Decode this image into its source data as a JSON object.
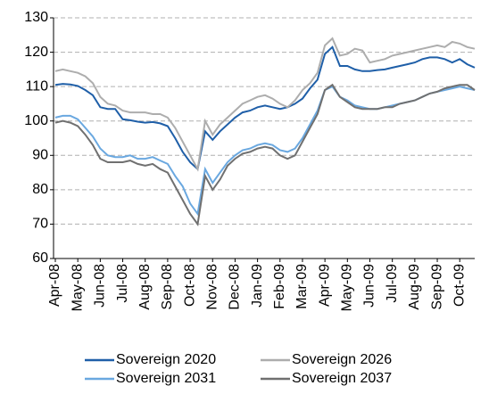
{
  "chart_data": {
    "type": "line",
    "categories": [
      "Apr-08",
      null,
      null,
      "May-08",
      null,
      null,
      "Jun-08",
      null,
      null,
      "Jul-08",
      null,
      null,
      "Aug-08",
      null,
      null,
      "Sep-08",
      null,
      null,
      "Oct-08",
      null,
      null,
      "Nov-08",
      null,
      null,
      "Dec-08",
      null,
      null,
      "Jan-09",
      null,
      null,
      "Feb-09",
      null,
      null,
      "Mar-09",
      null,
      null,
      "Apr-09",
      null,
      null,
      "May-09",
      null,
      null,
      "Jun-09",
      null,
      null,
      "Jul-09",
      null,
      null,
      "Aug-09",
      null,
      null,
      "Sep-09",
      null,
      null,
      "Oct-09",
      null,
      null
    ],
    "series": [
      {
        "name": "Sovereign 2020",
        "color": "#1f5fa8",
        "values": [
          110.5,
          110.8,
          110.6,
          110.2,
          109,
          107.5,
          104,
          103.5,
          103.5,
          100.5,
          100.2,
          99.8,
          99.5,
          99.7,
          99.3,
          98.5,
          95,
          91,
          88,
          86,
          97,
          94.5,
          97,
          99,
          101,
          102.5,
          103,
          104,
          104.5,
          104,
          103.5,
          104,
          105,
          106.5,
          109.5,
          112,
          119.5,
          121.5,
          116,
          116,
          115,
          114.5,
          114.5,
          114.8,
          115,
          115.5,
          116,
          116.5,
          117,
          118,
          118.5,
          118.5,
          118,
          117,
          118,
          116.5,
          115.5
        ]
      },
      {
        "name": "Sovereign 2026",
        "color": "#adadad",
        "values": [
          114.5,
          115,
          114.5,
          114,
          113,
          111,
          107,
          105,
          104.5,
          103,
          102.5,
          102.5,
          102.5,
          102,
          102,
          101,
          98,
          94,
          90,
          86,
          100,
          96,
          99,
          101,
          103,
          105,
          106,
          107,
          107.5,
          106.5,
          105,
          104,
          106,
          109,
          111,
          114,
          122,
          124,
          119,
          119.5,
          121,
          120.5,
          117,
          117.5,
          118,
          119,
          119.5,
          120,
          120.5,
          121,
          121.5,
          122,
          121.5,
          123,
          122.5,
          121.5,
          121
        ]
      },
      {
        "name": "Sovereign 2031",
        "color": "#6aa8e0",
        "values": [
          101,
          101.5,
          101.5,
          100.5,
          98,
          95.5,
          92,
          90,
          89.5,
          89.5,
          90,
          89,
          89,
          89.5,
          88.5,
          87.5,
          84,
          81,
          76,
          73,
          86,
          82,
          85,
          88,
          90,
          91.5,
          92,
          93,
          93.5,
          93,
          91.5,
          91,
          92,
          95,
          99,
          103,
          109,
          110,
          107,
          106,
          104.5,
          104,
          103.5,
          103.5,
          104,
          104.5,
          105,
          105.5,
          106,
          107,
          108,
          108.5,
          109,
          109.5,
          110,
          109.5,
          109
        ]
      },
      {
        "name": "Sovereign 2037",
        "color": "#707070",
        "values": [
          99.5,
          100,
          99.5,
          98.5,
          96,
          93,
          89,
          88,
          88,
          88,
          88.5,
          87.5,
          87,
          87.5,
          86,
          85,
          81,
          77,
          73,
          70,
          84,
          80,
          83,
          87,
          89,
          90.5,
          91,
          92,
          92.5,
          92,
          90,
          89,
          90,
          94,
          98,
          102,
          109,
          110.5,
          107,
          105.5,
          104,
          103.5,
          103.5,
          103.5,
          104,
          104,
          105,
          105.5,
          106,
          107,
          108,
          108.5,
          109.5,
          110,
          110.5,
          110.5,
          109
        ]
      }
    ],
    "ylim": [
      60,
      130
    ],
    "yticks": [
      60,
      70,
      80,
      90,
      100,
      110,
      120,
      130
    ],
    "grid": true
  }
}
